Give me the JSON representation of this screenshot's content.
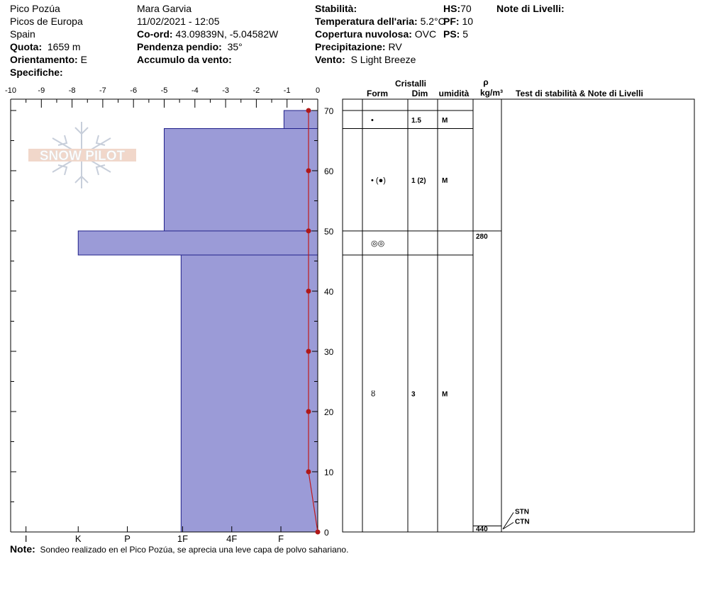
{
  "header": {
    "location": "Pico Pozúa",
    "range": "Picos de Europa",
    "country": "Spain",
    "elevation_label": "Quota:",
    "elevation_value": "1659 m",
    "aspect_label": "Orientamento:",
    "aspect_value": "E",
    "specifics_label": "Specifiche:",
    "observer": "Mara Garvia",
    "datetime": "11/02/2021 - 12:05",
    "coords_label": "Co-ord:",
    "coords_value": "43.09839N, -5.04582W",
    "slope_label": "Pendenza pendio:",
    "slope_value": "35°",
    "wind_loading_label": "Accumulo da vento:",
    "stability_label": "Stabilità:",
    "air_temp_label": "Temperatura dell'aria:",
    "air_temp_value": "5.2°C",
    "sky_cover_label": "Copertura nuvolosa:",
    "sky_cover_value": "OVC",
    "precip_label": "Precipitazione:",
    "precip_value": "RV",
    "wind_label": "Vento:",
    "wind_value": "S Light Breeze",
    "hs_label": "HS:",
    "hs_value": "70",
    "pf_label": "PF:",
    "pf_value": "10",
    "ps_label": "PS:",
    "ps_value": "5",
    "layer_notes_label": "Note di Livelli:"
  },
  "watermark": "SNOW PILOT",
  "footer": {
    "note_label": "Note:",
    "note_text": "Sondeo realizado en el Pico Pozúa, se aprecia una leve capa de polvo sahariano."
  },
  "table_headers": {
    "crystals": "Cristalli",
    "form": "Form",
    "size": "Dim",
    "moisture": "umidità",
    "rho": "ρ",
    "density_unit": "kg/m³",
    "tests": "Test di stabilità & Note di Livelli"
  },
  "chart_data": {
    "type": "snow-profile",
    "temp_axis": {
      "range": [
        -10,
        0
      ],
      "ticks": [
        -10,
        -9,
        -8,
        -7,
        -6,
        -5,
        -4,
        -3,
        -2,
        -1,
        0
      ]
    },
    "height_axis": {
      "range": [
        0,
        70
      ],
      "ticks": [
        0,
        10,
        20,
        30,
        40,
        50,
        60,
        70
      ]
    },
    "hardness_scale": {
      "labels": [
        "I",
        "K",
        "P",
        "1F",
        "4F",
        "F"
      ],
      "positions_temp": [
        -9.5,
        -7.8,
        -6.2,
        -4.4,
        -2.8,
        -1.2
      ]
    },
    "hardness_profile": [
      {
        "bottom": 67,
        "top": 70,
        "hardness_temp": -1.1
      },
      {
        "bottom": 50,
        "top": 67,
        "hardness_temp": -5.0
      },
      {
        "bottom": 46,
        "top": 50,
        "hardness_temp": -7.8
      },
      {
        "bottom": 0,
        "top": 46,
        "hardness_temp": -4.45
      }
    ],
    "temperature_profile": [
      {
        "height": 70,
        "temp": -0.3
      },
      {
        "height": 60,
        "temp": -0.3
      },
      {
        "height": 50,
        "temp": -0.3
      },
      {
        "height": 40,
        "temp": -0.3
      },
      {
        "height": 30,
        "temp": -0.3
      },
      {
        "height": 20,
        "temp": -0.3
      },
      {
        "height": 10,
        "temp": -0.3
      },
      {
        "height": 0,
        "temp": 0
      }
    ],
    "layers": [
      {
        "bottom": 67,
        "top": 70,
        "form": "•",
        "size": "1.5",
        "moisture": "M"
      },
      {
        "bottom": 50,
        "top": 67,
        "form": "• (●)",
        "size": "1 (2)",
        "moisture": "M"
      },
      {
        "bottom": 46,
        "top": 50,
        "form": "◎◎",
        "size": "",
        "moisture": ""
      },
      {
        "bottom": 0,
        "top": 46,
        "form": "ȣ",
        "size": "3",
        "moisture": "M"
      }
    ],
    "densities": [
      {
        "bottom": 46,
        "top": 50,
        "value": "280"
      },
      {
        "bottom": 0,
        "top": 1,
        "value": "440"
      }
    ],
    "stability_tests": [
      {
        "height": 3,
        "label": "STN"
      },
      {
        "height": 1,
        "label": "CTN"
      }
    ]
  }
}
